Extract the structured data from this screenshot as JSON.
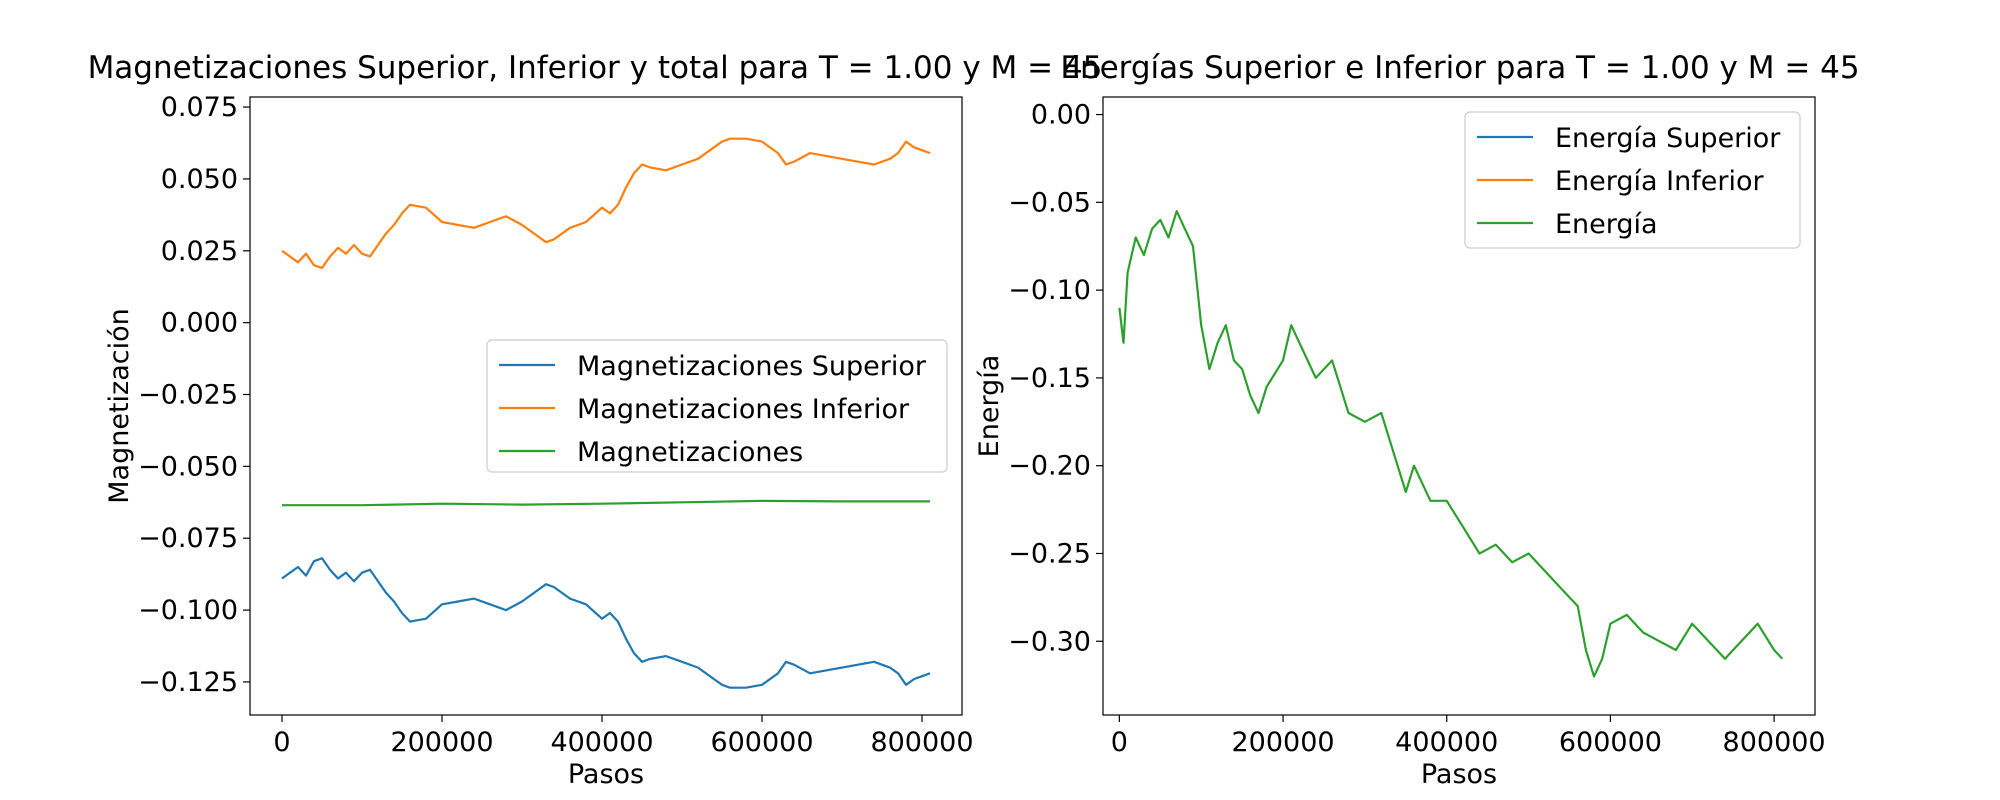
{
  "chart_data": [
    {
      "type": "line",
      "title": "Magnetizaciones Superior, Inferior y total para T = 1.00 y M = 45",
      "xlabel": "Pasos",
      "ylabel": "Magnetización",
      "xlim": [
        -40000,
        850000
      ],
      "ylim": [
        -0.1365,
        0.0785
      ],
      "xticks": [
        0,
        200000,
        400000,
        600000,
        800000
      ],
      "xtick_labels": [
        "0",
        "200000",
        "400000",
        "600000",
        "800000"
      ],
      "yticks": [
        0.075,
        0.05,
        0.025,
        0.0,
        -0.025,
        -0.05,
        -0.075,
        -0.1,
        -0.125
      ],
      "ytick_labels": [
        "0.075",
        "0.050",
        "0.025",
        "0.000",
        "−0.025",
        "−0.050",
        "−0.075",
        "−0.100",
        "−0.125"
      ],
      "legend_position": "center-right",
      "series": [
        {
          "name": "Magnetizaciones Superior",
          "color": "#1f77b4",
          "x": [
            0,
            10000,
            20000,
            30000,
            40000,
            50000,
            60000,
            70000,
            80000,
            90000,
            100000,
            110000,
            120000,
            130000,
            140000,
            150000,
            160000,
            180000,
            200000,
            220000,
            240000,
            260000,
            280000,
            300000,
            320000,
            330000,
            340000,
            360000,
            380000,
            400000,
            410000,
            420000,
            430000,
            440000,
            450000,
            460000,
            480000,
            500000,
            520000,
            540000,
            550000,
            560000,
            580000,
            600000,
            620000,
            630000,
            640000,
            660000,
            680000,
            700000,
            720000,
            740000,
            760000,
            770000,
            780000,
            790000,
            800000,
            810000
          ],
          "values": [
            -0.089,
            -0.087,
            -0.085,
            -0.088,
            -0.083,
            -0.082,
            -0.086,
            -0.089,
            -0.087,
            -0.09,
            -0.087,
            -0.086,
            -0.09,
            -0.094,
            -0.097,
            -0.101,
            -0.104,
            -0.103,
            -0.098,
            -0.097,
            -0.096,
            -0.098,
            -0.1,
            -0.097,
            -0.093,
            -0.091,
            -0.092,
            -0.096,
            -0.098,
            -0.103,
            -0.101,
            -0.104,
            -0.11,
            -0.115,
            -0.118,
            -0.117,
            -0.116,
            -0.118,
            -0.12,
            -0.124,
            -0.126,
            -0.127,
            -0.127,
            -0.126,
            -0.122,
            -0.118,
            -0.119,
            -0.122,
            -0.121,
            -0.12,
            -0.119,
            -0.118,
            -0.12,
            -0.122,
            -0.126,
            -0.124,
            -0.123,
            -0.122
          ]
        },
        {
          "name": "Magnetizaciones Inferior",
          "color": "#ff7f0e",
          "x": [
            0,
            10000,
            20000,
            30000,
            40000,
            50000,
            60000,
            70000,
            80000,
            90000,
            100000,
            110000,
            120000,
            130000,
            140000,
            150000,
            160000,
            180000,
            200000,
            220000,
            240000,
            260000,
            280000,
            300000,
            320000,
            330000,
            340000,
            360000,
            380000,
            400000,
            410000,
            420000,
            430000,
            440000,
            450000,
            460000,
            480000,
            500000,
            520000,
            540000,
            550000,
            560000,
            580000,
            600000,
            620000,
            630000,
            640000,
            660000,
            680000,
            700000,
            720000,
            740000,
            760000,
            770000,
            780000,
            790000,
            800000,
            810000
          ],
          "values": [
            0.025,
            0.023,
            0.021,
            0.024,
            0.02,
            0.019,
            0.023,
            0.026,
            0.024,
            0.027,
            0.024,
            0.023,
            0.027,
            0.031,
            0.034,
            0.038,
            0.041,
            0.04,
            0.035,
            0.034,
            0.033,
            0.035,
            0.037,
            0.034,
            0.03,
            0.028,
            0.029,
            0.033,
            0.035,
            0.04,
            0.038,
            0.041,
            0.047,
            0.052,
            0.055,
            0.054,
            0.053,
            0.055,
            0.057,
            0.061,
            0.063,
            0.064,
            0.064,
            0.063,
            0.059,
            0.055,
            0.056,
            0.059,
            0.058,
            0.057,
            0.056,
            0.055,
            0.057,
            0.059,
            0.063,
            0.061,
            0.06,
            0.059
          ]
        },
        {
          "name": "Magnetizaciones",
          "color": "#2ca02c",
          "x": [
            0,
            100000,
            200000,
            300000,
            400000,
            500000,
            600000,
            700000,
            810000
          ],
          "values": [
            -0.0635,
            -0.0635,
            -0.063,
            -0.0633,
            -0.063,
            -0.0625,
            -0.062,
            -0.0622,
            -0.0622
          ]
        }
      ]
    },
    {
      "type": "line",
      "title": "Energías Superior e Inferior para T = 1.00 y M = 45",
      "xlabel": "Pasos",
      "ylabel": "Energía",
      "xlim": [
        -20000,
        850000
      ],
      "ylim": [
        -0.342,
        0.01
      ],
      "xticks": [
        0,
        200000,
        400000,
        600000,
        800000
      ],
      "xtick_labels": [
        "0",
        "200000",
        "400000",
        "600000",
        "800000"
      ],
      "yticks": [
        0.0,
        -0.05,
        -0.1,
        -0.15,
        -0.2,
        -0.25,
        -0.3
      ],
      "ytick_labels": [
        "0.00",
        "−0.05",
        "−0.10",
        "−0.15",
        "−0.20",
        "−0.25",
        "−0.30"
      ],
      "legend_position": "upper right",
      "series": [
        {
          "name": "Energía Superior",
          "color": "#1f77b4",
          "x": [],
          "values": []
        },
        {
          "name": "Energía Inferior",
          "color": "#ff7f0e",
          "x": [],
          "values": []
        },
        {
          "name": "Energía",
          "color": "#2ca02c",
          "x": [
            0,
            5000,
            10000,
            20000,
            30000,
            40000,
            50000,
            60000,
            70000,
            80000,
            90000,
            100000,
            110000,
            120000,
            130000,
            140000,
            150000,
            160000,
            170000,
            180000,
            200000,
            210000,
            220000,
            240000,
            260000,
            280000,
            300000,
            320000,
            340000,
            350000,
            360000,
            380000,
            400000,
            420000,
            440000,
            460000,
            480000,
            500000,
            520000,
            540000,
            560000,
            570000,
            580000,
            590000,
            600000,
            620000,
            640000,
            660000,
            680000,
            700000,
            720000,
            740000,
            760000,
            780000,
            800000,
            810000
          ],
          "values": [
            -0.11,
            -0.13,
            -0.09,
            -0.07,
            -0.08,
            -0.065,
            -0.06,
            -0.07,
            -0.055,
            -0.065,
            -0.075,
            -0.12,
            -0.145,
            -0.13,
            -0.12,
            -0.14,
            -0.145,
            -0.16,
            -0.17,
            -0.155,
            -0.14,
            -0.12,
            -0.13,
            -0.15,
            -0.14,
            -0.17,
            -0.175,
            -0.17,
            -0.2,
            -0.215,
            -0.2,
            -0.22,
            -0.22,
            -0.235,
            -0.25,
            -0.245,
            -0.255,
            -0.25,
            -0.26,
            -0.27,
            -0.28,
            -0.305,
            -0.32,
            -0.31,
            -0.29,
            -0.285,
            -0.295,
            -0.3,
            -0.305,
            -0.29,
            -0.3,
            -0.31,
            -0.3,
            -0.29,
            -0.305,
            -0.31
          ]
        }
      ]
    }
  ]
}
